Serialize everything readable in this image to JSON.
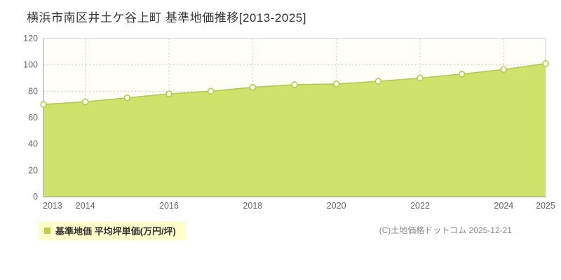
{
  "page": {
    "title": "横浜市南区井土ケ谷上町 基準地価推移[2013-2025]",
    "copyright": "(C)土地価格ドットコム 2025-12-21"
  },
  "legend": {
    "label": "基準地価 平均坪単価(万円/坪)",
    "marker_color": "#b9d44b",
    "background": "#ffffcc"
  },
  "chart_data": {
    "type": "area",
    "title": "横浜市南区井土ケ谷上町 基準地価推移[2013-2025]",
    "series_name": "基準地価 平均坪単価(万円/坪)",
    "x": [
      2013,
      2014,
      2015,
      2016,
      2017,
      2018,
      2019,
      2020,
      2021,
      2022,
      2023,
      2024,
      2025
    ],
    "values": [
      70,
      72,
      75,
      78,
      80,
      83,
      85,
      85.5,
      87.5,
      90,
      93,
      96.5,
      101
    ],
    "x_ticks": [
      2013,
      2014,
      2016,
      2018,
      2020,
      2022,
      2024,
      2025
    ],
    "y_ticks": [
      0,
      20,
      40,
      60,
      80,
      100,
      120
    ],
    "ylim": [
      0,
      120
    ],
    "xlabel": "",
    "ylabel": "",
    "grid": "dotted",
    "legend_position": "bottom-left",
    "area_color": "#cfe26b",
    "line_color": "#b0cf3c",
    "marker_style": "white-circle",
    "plot_bg": "#fffff8",
    "grid_color": "#cccccc"
  }
}
